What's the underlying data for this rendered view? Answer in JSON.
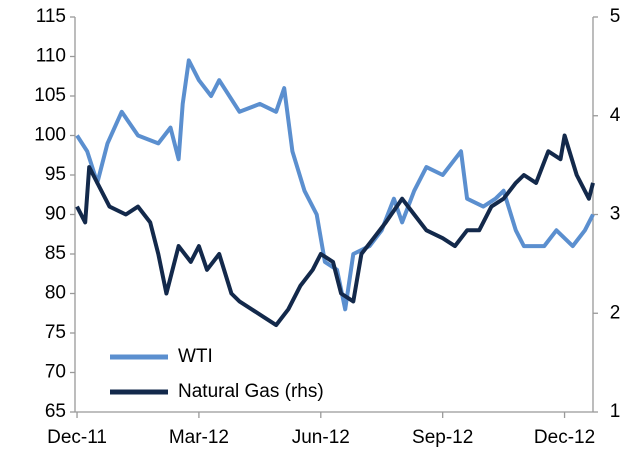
{
  "chart_data": {
    "type": "line",
    "xlim": [
      -0.05,
      12.7
    ],
    "xticks": [
      {
        "value": 0,
        "label": "Dec-11"
      },
      {
        "value": 3,
        "label": "Mar-12"
      },
      {
        "value": 6,
        "label": "Jun-12"
      },
      {
        "value": 9,
        "label": "Sep-12"
      },
      {
        "value": 12,
        "label": "Dec-12"
      }
    ],
    "ylim": [
      65,
      115
    ],
    "yticks": [
      65,
      70,
      75,
      80,
      85,
      90,
      95,
      100,
      105,
      110,
      115
    ],
    "y2lim": [
      1,
      5
    ],
    "y2ticks": [
      1,
      2,
      3,
      4,
      5
    ],
    "grid": false,
    "legend": "lower left",
    "series": [
      {
        "name": "WTI",
        "color": "#5b8fcf",
        "x": [
          0,
          0.25,
          0.5,
          0.75,
          1.1,
          1.5,
          2,
          2.3,
          2.5,
          2.6,
          2.75,
          3,
          3.3,
          3.5,
          4,
          4.5,
          4.9,
          5.1,
          5.3,
          5.6,
          5.9,
          6.1,
          6.4,
          6.6,
          6.8,
          7.2,
          7.5,
          7.8,
          8,
          8.3,
          8.6,
          9,
          9.3,
          9.45,
          9.6,
          10,
          10.3,
          10.5,
          10.8,
          11,
          11.5,
          11.8,
          12.2,
          12.5,
          12.7
        ],
        "values": [
          100,
          98,
          94,
          99,
          103,
          100,
          99,
          101,
          97,
          104,
          109.5,
          107,
          105,
          107,
          103,
          104,
          103,
          106,
          98,
          93,
          90,
          84,
          83,
          78,
          85,
          86,
          88,
          92,
          89,
          93,
          96,
          95,
          97,
          98,
          92,
          91,
          92,
          93,
          88,
          86,
          86,
          88,
          86,
          88,
          90
        ]
      },
      {
        "name": "Natural Gas (rhs)",
        "color": "#13294b",
        "axis": "y2",
        "x": [
          0,
          0.2,
          0.3,
          0.5,
          0.8,
          1.2,
          1.5,
          1.8,
          2,
          2.2,
          2.5,
          2.8,
          3,
          3.2,
          3.5,
          3.8,
          4,
          4.3,
          4.6,
          4.9,
          5.2,
          5.5,
          5.8,
          6,
          6.3,
          6.5,
          6.8,
          7,
          7.3,
          7.6,
          8,
          8.3,
          8.6,
          9,
          9.3,
          9.6,
          9.9,
          10.2,
          10.5,
          10.8,
          11,
          11.3,
          11.6,
          11.9,
          12,
          12.3,
          12.6,
          12.7
        ],
        "values": [
          3.08,
          2.92,
          3.48,
          3.32,
          3.08,
          3.0,
          3.08,
          2.92,
          2.6,
          2.2,
          2.68,
          2.52,
          2.68,
          2.44,
          2.6,
          2.2,
          2.12,
          2.04,
          1.96,
          1.88,
          2.04,
          2.28,
          2.44,
          2.6,
          2.52,
          2.2,
          2.12,
          2.6,
          2.76,
          2.92,
          3.16,
          3.0,
          2.84,
          2.76,
          2.68,
          2.84,
          2.84,
          3.08,
          3.16,
          3.32,
          3.4,
          3.32,
          3.64,
          3.56,
          3.8,
          3.4,
          3.16,
          3.32
        ]
      }
    ]
  }
}
